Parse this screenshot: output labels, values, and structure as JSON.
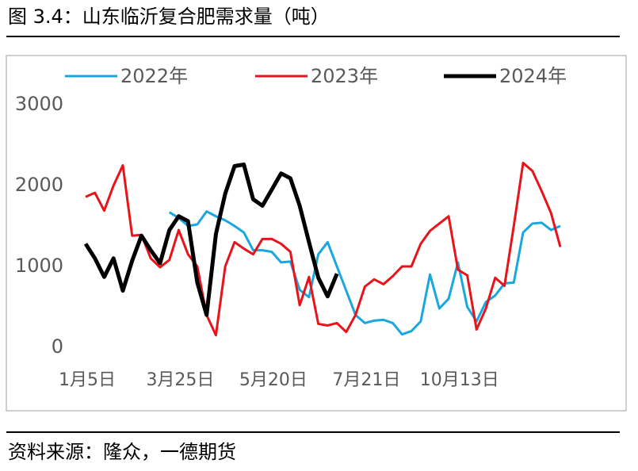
{
  "title": "图 3.4：山东临沂复合肥需求量（吨）",
  "source": "资料来源：隆众，一德期货",
  "chart_data": {
    "type": "line",
    "categories": [
      "1月5日",
      null,
      null,
      null,
      null,
      null,
      null,
      null,
      null,
      null,
      "3月25日",
      null,
      null,
      null,
      null,
      null,
      null,
      null,
      null,
      null,
      "5月20日",
      null,
      null,
      null,
      null,
      null,
      null,
      null,
      null,
      null,
      "7月21日",
      null,
      null,
      null,
      null,
      null,
      null,
      null,
      null,
      null,
      "10月13日",
      null,
      null,
      null,
      null,
      null,
      null,
      null,
      null,
      null,
      null,
      null
    ],
    "ylim": [
      0,
      3000
    ],
    "yticks": [
      0,
      1000,
      2000,
      3000
    ],
    "grid": false,
    "legend": "top",
    "series": [
      {
        "name": "2022年",
        "color": "#1aa7e0",
        "width": 3,
        "values": [
          null,
          null,
          null,
          null,
          null,
          null,
          null,
          null,
          null,
          1670,
          1600,
          1500,
          1520,
          1680,
          1620,
          1570,
          1500,
          1420,
          1200,
          1200,
          1180,
          1050,
          1060,
          710,
          620,
          1150,
          1300,
          1000,
          700,
          400,
          300,
          330,
          340,
          300,
          160,
          200,
          320,
          900,
          480,
          600,
          1050,
          500,
          320,
          560,
          640,
          790,
          800,
          1420,
          1530,
          1540,
          1450,
          1500
        ]
      },
      {
        "name": "2023年",
        "color": "#e8141b",
        "width": 3,
        "values": [
          1860,
          1910,
          1690,
          2000,
          2250,
          1380,
          1390,
          1100,
          990,
          1080,
          1450,
          1150,
          1000,
          400,
          150,
          1000,
          1300,
          1220,
          1150,
          1340,
          1340,
          1280,
          1180,
          520,
          870,
          290,
          270,
          300,
          190,
          400,
          750,
          840,
          780,
          880,
          1000,
          1000,
          1280,
          1440,
          1530,
          1620,
          960,
          890,
          220,
          480,
          860,
          760,
          1500,
          2280,
          2180,
          1930,
          1660,
          1240
        ]
      },
      {
        "name": "2024年",
        "color": "#000000",
        "width": 5,
        "values": [
          1280,
          1100,
          870,
          1100,
          700,
          1070,
          1380,
          1200,
          1040,
          1450,
          1620,
          1560,
          800,
          400,
          1400,
          1900,
          2240,
          2260,
          1830,
          1750,
          1950,
          2150,
          2090,
          1750,
          1300,
          860,
          630,
          910,
          null,
          null,
          null,
          null,
          null,
          null,
          null,
          null,
          null,
          null,
          null,
          null,
          null,
          null,
          null,
          null,
          null,
          null,
          null,
          null,
          null,
          null,
          null,
          null
        ]
      }
    ]
  }
}
